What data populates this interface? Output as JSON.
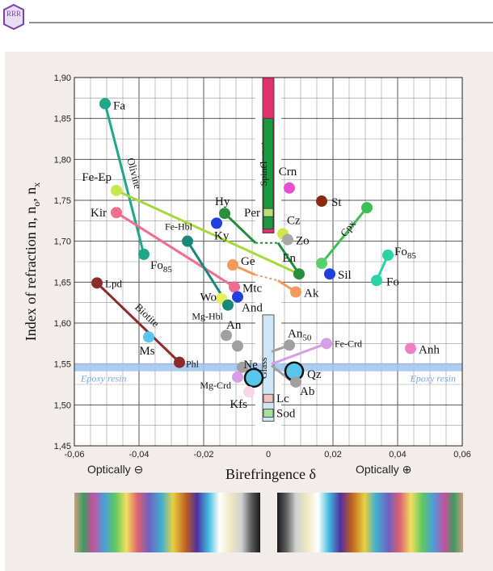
{
  "header": {
    "logo_text": "RRR"
  },
  "chart_data": {
    "type": "scatter",
    "xlabel": "Birefringence  δ",
    "ylabel": "Index of refraction  n, n",
    "ylabel_sub1": "o",
    "ylabel_mid": ", n",
    "ylabel_sub2": "x",
    "xlim": [
      -0.06,
      0.06
    ],
    "ylim": [
      1.45,
      1.9
    ],
    "x_ticks": [
      -0.06,
      -0.04,
      -0.02,
      0,
      0.02,
      0.04,
      0.06
    ],
    "x_tick_labels": [
      "-0,06",
      "-0,04",
      "-0,02",
      "0",
      "0,02",
      "0,04",
      "0,06"
    ],
    "y_ticks": [
      1.45,
      1.5,
      1.55,
      1.6,
      1.65,
      1.7,
      1.75,
      1.8,
      1.85,
      1.9
    ],
    "y_tick_labels": [
      "1,45",
      "1,50",
      "1,55",
      "1,60",
      "1,65",
      "1,70",
      "1,75",
      "1,80",
      "1,85",
      "1,90"
    ],
    "grid": true,
    "optically_negative": "Optically ⊖",
    "optically_positive": "Optically ⊕",
    "epoxy": {
      "label": "Epoxy resin",
      "n": 1.546,
      "color": "#9dc3f0"
    },
    "isotropic_bars": [
      {
        "name": "Garnet",
        "from": 1.71,
        "to": 1.9,
        "color": "#e0306e"
      },
      {
        "name": "Spinel",
        "from": 1.715,
        "to": 1.85,
        "color": "#1a9a3c"
      },
      {
        "name": "Glass",
        "from": 1.48,
        "to": 1.61,
        "color": "#cfe6f7"
      }
    ],
    "isotropic_points": [
      {
        "name": "Per",
        "n": 1.735,
        "color": "#b8e07a"
      },
      {
        "name": "Lc",
        "n": 1.508,
        "color": "#f4c0c0"
      },
      {
        "name": "Sod",
        "n": 1.49,
        "color": "#a8e0a0"
      }
    ],
    "segments": [
      {
        "from": [
          -0.0505,
          1.868
        ],
        "to": [
          -0.0385,
          1.684
        ],
        "color": "#1ea789",
        "label": "Olivine"
      },
      {
        "from": [
          -0.047,
          1.762
        ],
        "to": [
          0.0095,
          1.66
        ],
        "color": "#a5d93b"
      },
      {
        "from": [
          -0.047,
          1.735
        ],
        "to": [
          -0.0105,
          1.644
        ],
        "color": "#ef6d8d"
      },
      {
        "from": [
          -0.053,
          1.649
        ],
        "to": [
          -0.0275,
          1.552
        ],
        "color": "#8b2b2b",
        "label": "Biotite"
      },
      {
        "from": [
          -0.025,
          1.7
        ],
        "to": [
          -0.0125,
          1.622
        ],
        "color": "#17887a"
      },
      {
        "from": [
          -0.0135,
          1.734
        ],
        "to": [
          -0.004,
          1.698
        ],
        "color": "#1f8e3c"
      },
      {
        "from": [
          0.003,
          1.698
        ],
        "to": [
          0.0095,
          1.66
        ],
        "color": "#1f8e3c"
      },
      {
        "from": [
          0.0165,
          1.673
        ],
        "to": [
          0.0305,
          1.741
        ],
        "color": "#3cbf55",
        "label": "Cpx"
      },
      {
        "from": [
          0.037,
          1.683
        ],
        "to": [
          0.0335,
          1.652
        ],
        "color": "#2ad3a4"
      },
      {
        "from": [
          -0.011,
          1.671
        ],
        "to": [
          -0.004,
          1.659
        ],
        "color": "#f39a5a"
      },
      {
        "from": [
          0.003,
          1.652
        ],
        "to": [
          0.0085,
          1.638
        ],
        "color": "#f39a5a"
      },
      {
        "from": [
          0.001,
          1.55
        ],
        "to": [
          0.018,
          1.575
        ],
        "color": "#d79de6"
      },
      {
        "from": [
          0.001,
          1.565
        ],
        "to": [
          0.0065,
          1.573
        ],
        "color": "#a0a0a0"
      },
      {
        "from": [
          0.001,
          1.548
        ],
        "to": [
          0.0075,
          1.528
        ],
        "color": "#a0a0a0"
      }
    ],
    "points": [
      {
        "name": "Fa",
        "x": -0.0505,
        "y": 1.868,
        "color": "#1ea789"
      },
      {
        "name": "Fo",
        "sub": "85",
        "x": -0.0385,
        "y": 1.684,
        "color": "#1ea789"
      },
      {
        "name": "Fe-Ep",
        "x": -0.047,
        "y": 1.762,
        "color": "#c6e84a"
      },
      {
        "name": "Kir",
        "x": -0.047,
        "y": 1.735,
        "color": "#ef6d8d"
      },
      {
        "name": "Fe-Hbl",
        "x": -0.025,
        "y": 1.7,
        "color": "#17887a"
      },
      {
        "name": "Hy",
        "x": -0.0135,
        "y": 1.734,
        "color": "#2a8f3a"
      },
      {
        "name": "Ky",
        "x": -0.016,
        "y": 1.722,
        "color": "#1f3fe0"
      },
      {
        "name": "Ge",
        "x": -0.011,
        "y": 1.671,
        "color": "#f39a5a"
      },
      {
        "name": "Mtc",
        "x": -0.0105,
        "y": 1.644,
        "color": "#ef6d8d"
      },
      {
        "name": "Wo",
        "x": -0.0145,
        "y": 1.63,
        "color": "#e6f05a"
      },
      {
        "name": "And",
        "x": -0.0095,
        "y": 1.632,
        "color": "#1f3fe0"
      },
      {
        "name": "Mg-Hbl",
        "x": -0.0125,
        "y": 1.622,
        "color": "#17887a"
      },
      {
        "name": "Lpd",
        "x": -0.053,
        "y": 1.649,
        "color": "#8b2b2b"
      },
      {
        "name": "Ms",
        "x": -0.037,
        "y": 1.583,
        "color": "#58c7ee"
      },
      {
        "name": "Phl",
        "x": -0.0275,
        "y": 1.552,
        "color": "#8b2b2b"
      },
      {
        "name": "An",
        "x": -0.013,
        "y": 1.585,
        "color": "#a0a0a0"
      },
      {
        "name": "",
        "x": -0.0095,
        "y": 1.572,
        "color": "#a0a0a0"
      },
      {
        "name": "",
        "x": -0.008,
        "y": 1.546,
        "color": "#a0a0a0"
      },
      {
        "name": "Mg-Crd",
        "x": -0.0095,
        "y": 1.534,
        "color": "#d79de6"
      },
      {
        "name": "Ne",
        "x": -0.0045,
        "y": 1.533,
        "color": "#58c7ee",
        "big": true
      },
      {
        "name": "Kfs",
        "x": -0.006,
        "y": 1.516,
        "color": "#f7d6e6"
      },
      {
        "name": "Crn",
        "x": 0.0065,
        "y": 1.765,
        "color": "#e84fd0"
      },
      {
        "name": "St",
        "x": 0.0165,
        "y": 1.749,
        "color": "#8a2a10"
      },
      {
        "name": "Cz",
        "x": 0.0045,
        "y": 1.709,
        "color": "#cde84a"
      },
      {
        "name": "Zo",
        "x": 0.006,
        "y": 1.702,
        "color": "#a8a8a8"
      },
      {
        "name": "En",
        "x": 0.0095,
        "y": 1.66,
        "color": "#2a8f3a"
      },
      {
        "name": "Ak",
        "x": 0.0085,
        "y": 1.638,
        "color": "#f39a5a"
      },
      {
        "name": "Sil",
        "x": 0.019,
        "y": 1.66,
        "color": "#1f3fe0"
      },
      {
        "name": "",
        "x": 0.0165,
        "y": 1.673,
        "color": "#5ad06a"
      },
      {
        "name": "",
        "x": 0.0305,
        "y": 1.741,
        "color": "#3cbf55"
      },
      {
        "name": "Fo",
        "sub": "85",
        "x": 0.037,
        "y": 1.683,
        "color": "#2ad3a4"
      },
      {
        "name": "Fo",
        "x": 0.0335,
        "y": 1.652,
        "color": "#2ad3a4"
      },
      {
        "name": "An",
        "sub": "50",
        "x": 0.0065,
        "y": 1.573,
        "color": "#a0a0a0"
      },
      {
        "name": "Fe-Crd",
        "x": 0.018,
        "y": 1.575,
        "color": "#d79de6"
      },
      {
        "name": "Anh",
        "x": 0.044,
        "y": 1.569,
        "color": "#ef7fc7"
      },
      {
        "name": "Qz",
        "x": 0.008,
        "y": 1.541,
        "color": "#58c7ee",
        "big": true
      },
      {
        "name": "Ab",
        "x": 0.0085,
        "y": 1.528,
        "color": "#a0a0a0"
      }
    ]
  }
}
